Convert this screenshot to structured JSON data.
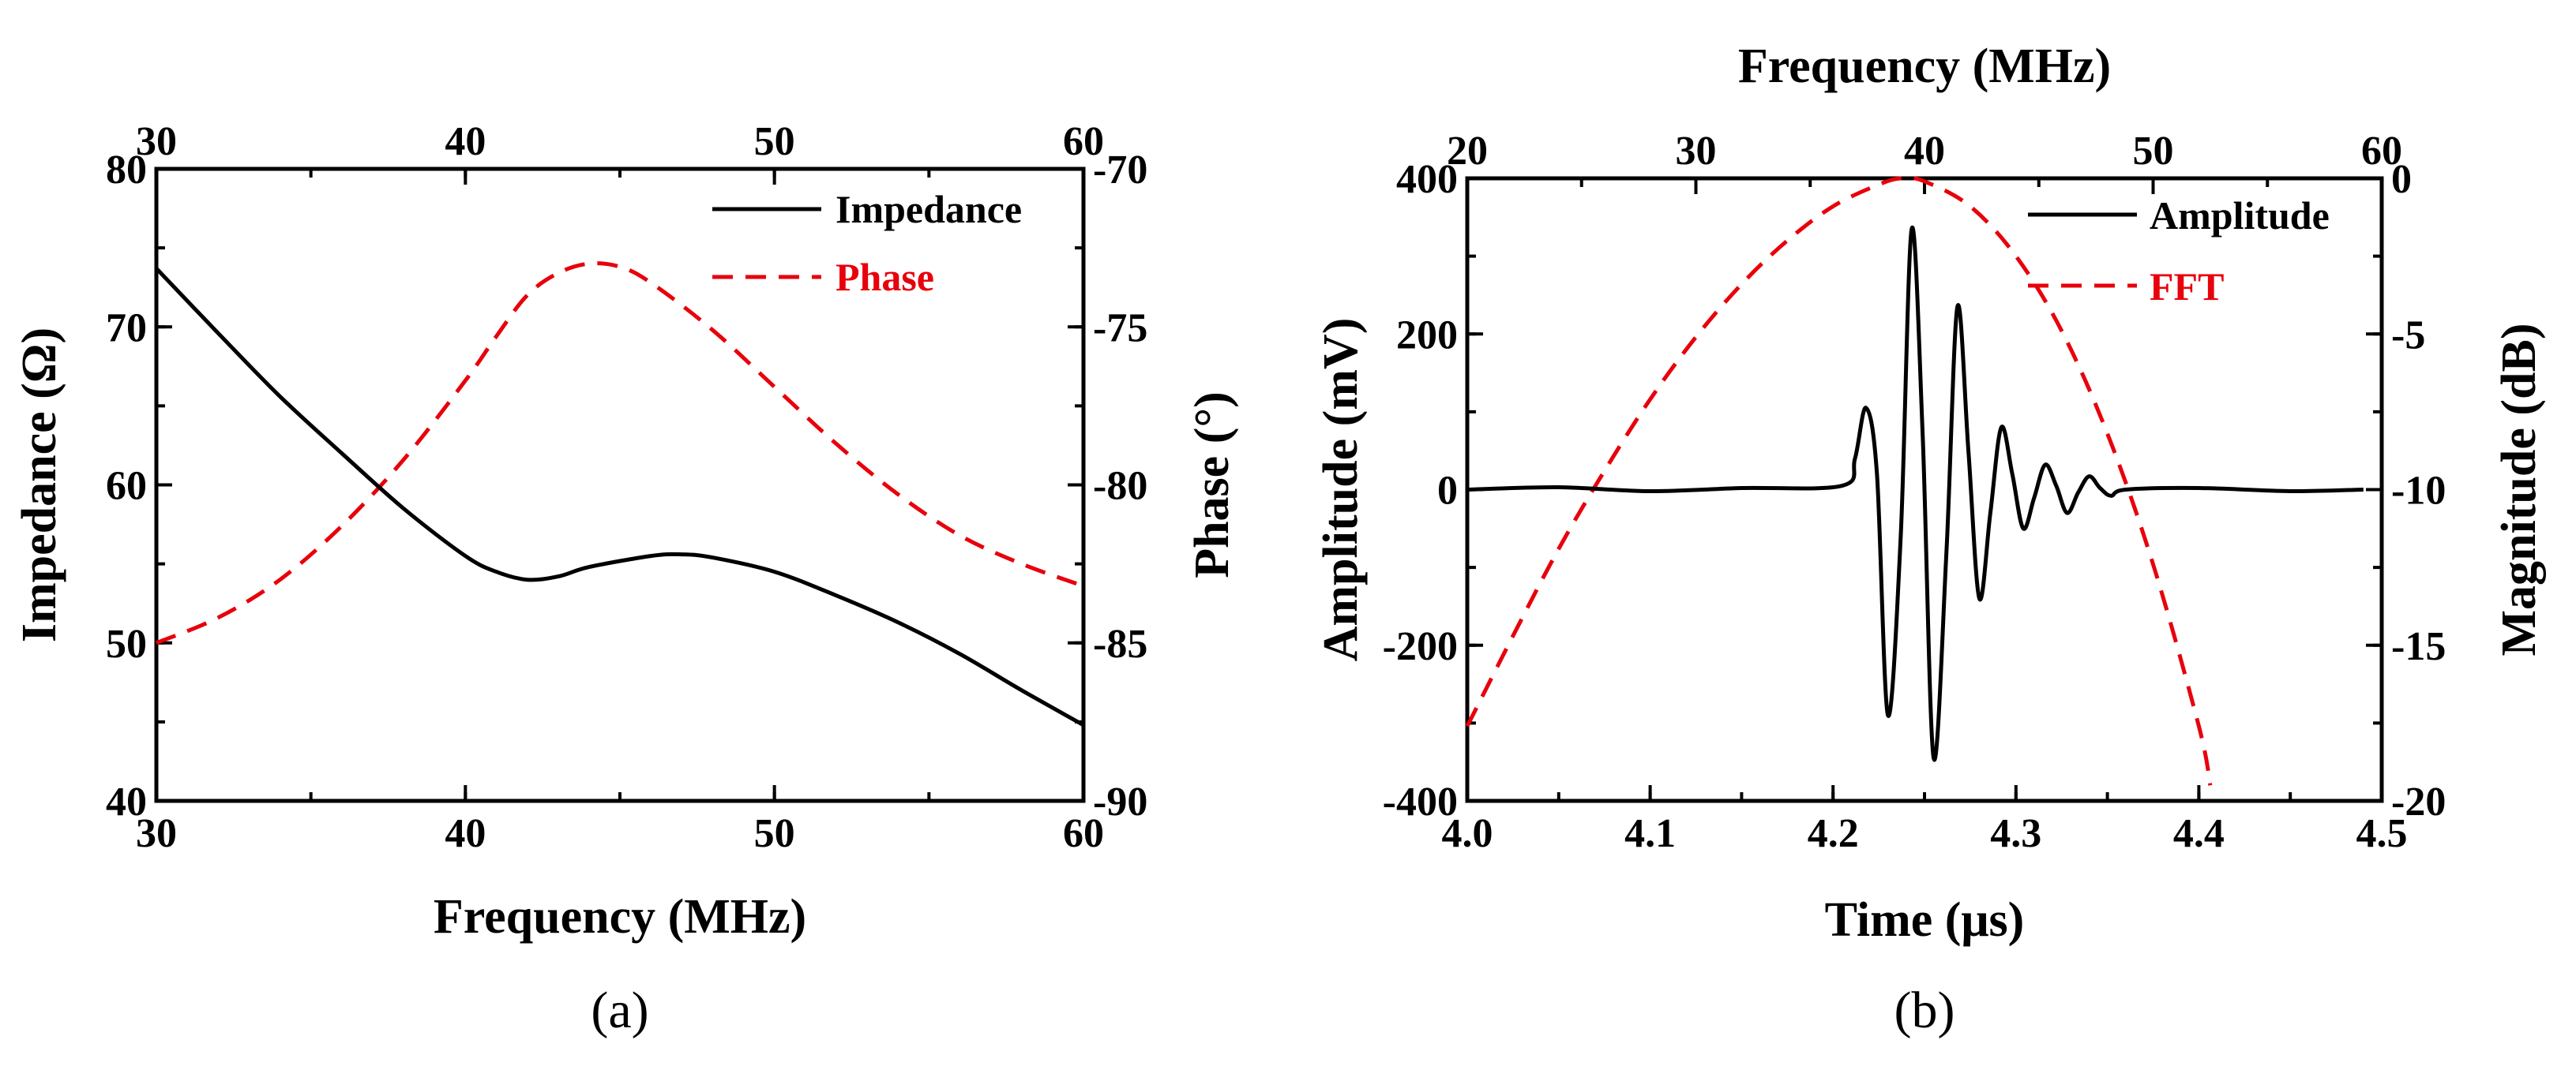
{
  "chart_data": [
    {
      "panel": "(a)",
      "type": "line",
      "xlabel": "Frequency (MHz)",
      "ylabel": "Impedance (Ω)",
      "y2label": "Phase (°)",
      "xlim": [
        30,
        60
      ],
      "ylim": [
        40,
        80
      ],
      "y2lim": [
        -90,
        -70
      ],
      "xticks": [
        "30",
        "40",
        "50",
        "60"
      ],
      "x2ticks": [
        "30",
        "40",
        "50",
        "60"
      ],
      "yticks": [
        "40",
        "50",
        "60",
        "70",
        "80"
      ],
      "y2ticks": [
        "-90",
        "-85",
        "-80",
        "-75",
        "-70"
      ],
      "legend_position": "top-right",
      "series": [
        {
          "name": "Impedance",
          "axis": "left",
          "color": "#000000",
          "dash": "solid",
          "x": [
            30,
            32,
            34,
            36,
            38,
            40,
            41,
            42,
            43,
            44,
            46,
            47,
            48,
            50,
            52,
            54,
            56,
            58,
            60
          ],
          "y": [
            73.7,
            69.6,
            65.6,
            62.0,
            58.5,
            55.5,
            54.5,
            54.0,
            54.2,
            54.8,
            55.5,
            55.6,
            55.4,
            54.5,
            53.0,
            51.3,
            49.3,
            47.0,
            44.8
          ]
        },
        {
          "name": "Phase",
          "axis": "right",
          "color": "#e8000b",
          "dash": "dashed",
          "x": [
            30,
            32,
            34,
            36,
            38,
            40,
            41,
            42,
            43,
            44,
            45,
            46,
            48,
            50,
            52,
            54,
            56,
            58,
            60
          ],
          "y": [
            -85.0,
            -84.2,
            -83.0,
            -81.3,
            -79.2,
            -76.7,
            -75.3,
            -74.0,
            -73.3,
            -73.0,
            -73.1,
            -73.6,
            -75.1,
            -76.9,
            -78.7,
            -80.3,
            -81.6,
            -82.5,
            -83.2
          ]
        }
      ]
    },
    {
      "panel": "(b)",
      "type": "line",
      "xlabel": "Time (μs)",
      "ylabel": "Amplitude (mV)",
      "x2label": "Frequency (MHz)",
      "y2label": "Magnitude (dB)",
      "xlim": [
        4.0,
        4.5
      ],
      "ylim": [
        -400,
        400
      ],
      "x2lim": [
        20,
        60
      ],
      "y2lim": [
        -20,
        0
      ],
      "xticks": [
        "4.0",
        "4.1",
        "4.2",
        "4.3",
        "4.4",
        "4.5"
      ],
      "x2ticks": [
        "20",
        "30",
        "40",
        "50",
        "60"
      ],
      "yticks": [
        "-400",
        "-200",
        "0",
        "200",
        "400"
      ],
      "y2ticks": [
        "-20",
        "-15",
        "-10",
        "-5",
        "0"
      ],
      "legend_position": "top-right",
      "series": [
        {
          "name": "Amplitude",
          "axis": "bottom-left",
          "color": "#000000",
          "dash": "solid",
          "x": [
            4.0,
            4.05,
            4.1,
            4.15,
            4.205,
            4.212,
            4.218,
            4.224,
            4.23,
            4.237,
            4.243,
            4.249,
            4.255,
            4.262,
            4.268,
            4.274,
            4.28,
            4.286,
            4.292,
            4.298,
            4.304,
            4.31,
            4.316,
            4.322,
            4.328,
            4.334,
            4.34,
            4.346,
            4.352,
            4.36,
            4.4,
            4.45,
            4.49
          ],
          "y": [
            0,
            3,
            -2,
            2,
            5,
            40,
            105,
            20,
            -290,
            -60,
            335,
            70,
            -345,
            -80,
            235,
            50,
            -140,
            -30,
            80,
            20,
            -50,
            -10,
            32,
            5,
            -30,
            -4,
            17,
            2,
            -8,
            0,
            2,
            -2,
            0
          ]
        },
        {
          "name": "FFT",
          "axis": "top-right",
          "color": "#e8000b",
          "dash": "dashed",
          "x": [
            20,
            22,
            24,
            26,
            28,
            30,
            32,
            34,
            36,
            38,
            39,
            40,
            42,
            44,
            46,
            48,
            50,
            52,
            52.5
          ],
          "y": [
            -17.6,
            -14.7,
            -11.9,
            -9.4,
            -7.1,
            -5.1,
            -3.4,
            -2.0,
            -0.9,
            -0.2,
            0.0,
            -0.1,
            -0.9,
            -2.5,
            -4.9,
            -8.2,
            -12.4,
            -17.6,
            -19.5
          ]
        }
      ]
    }
  ]
}
